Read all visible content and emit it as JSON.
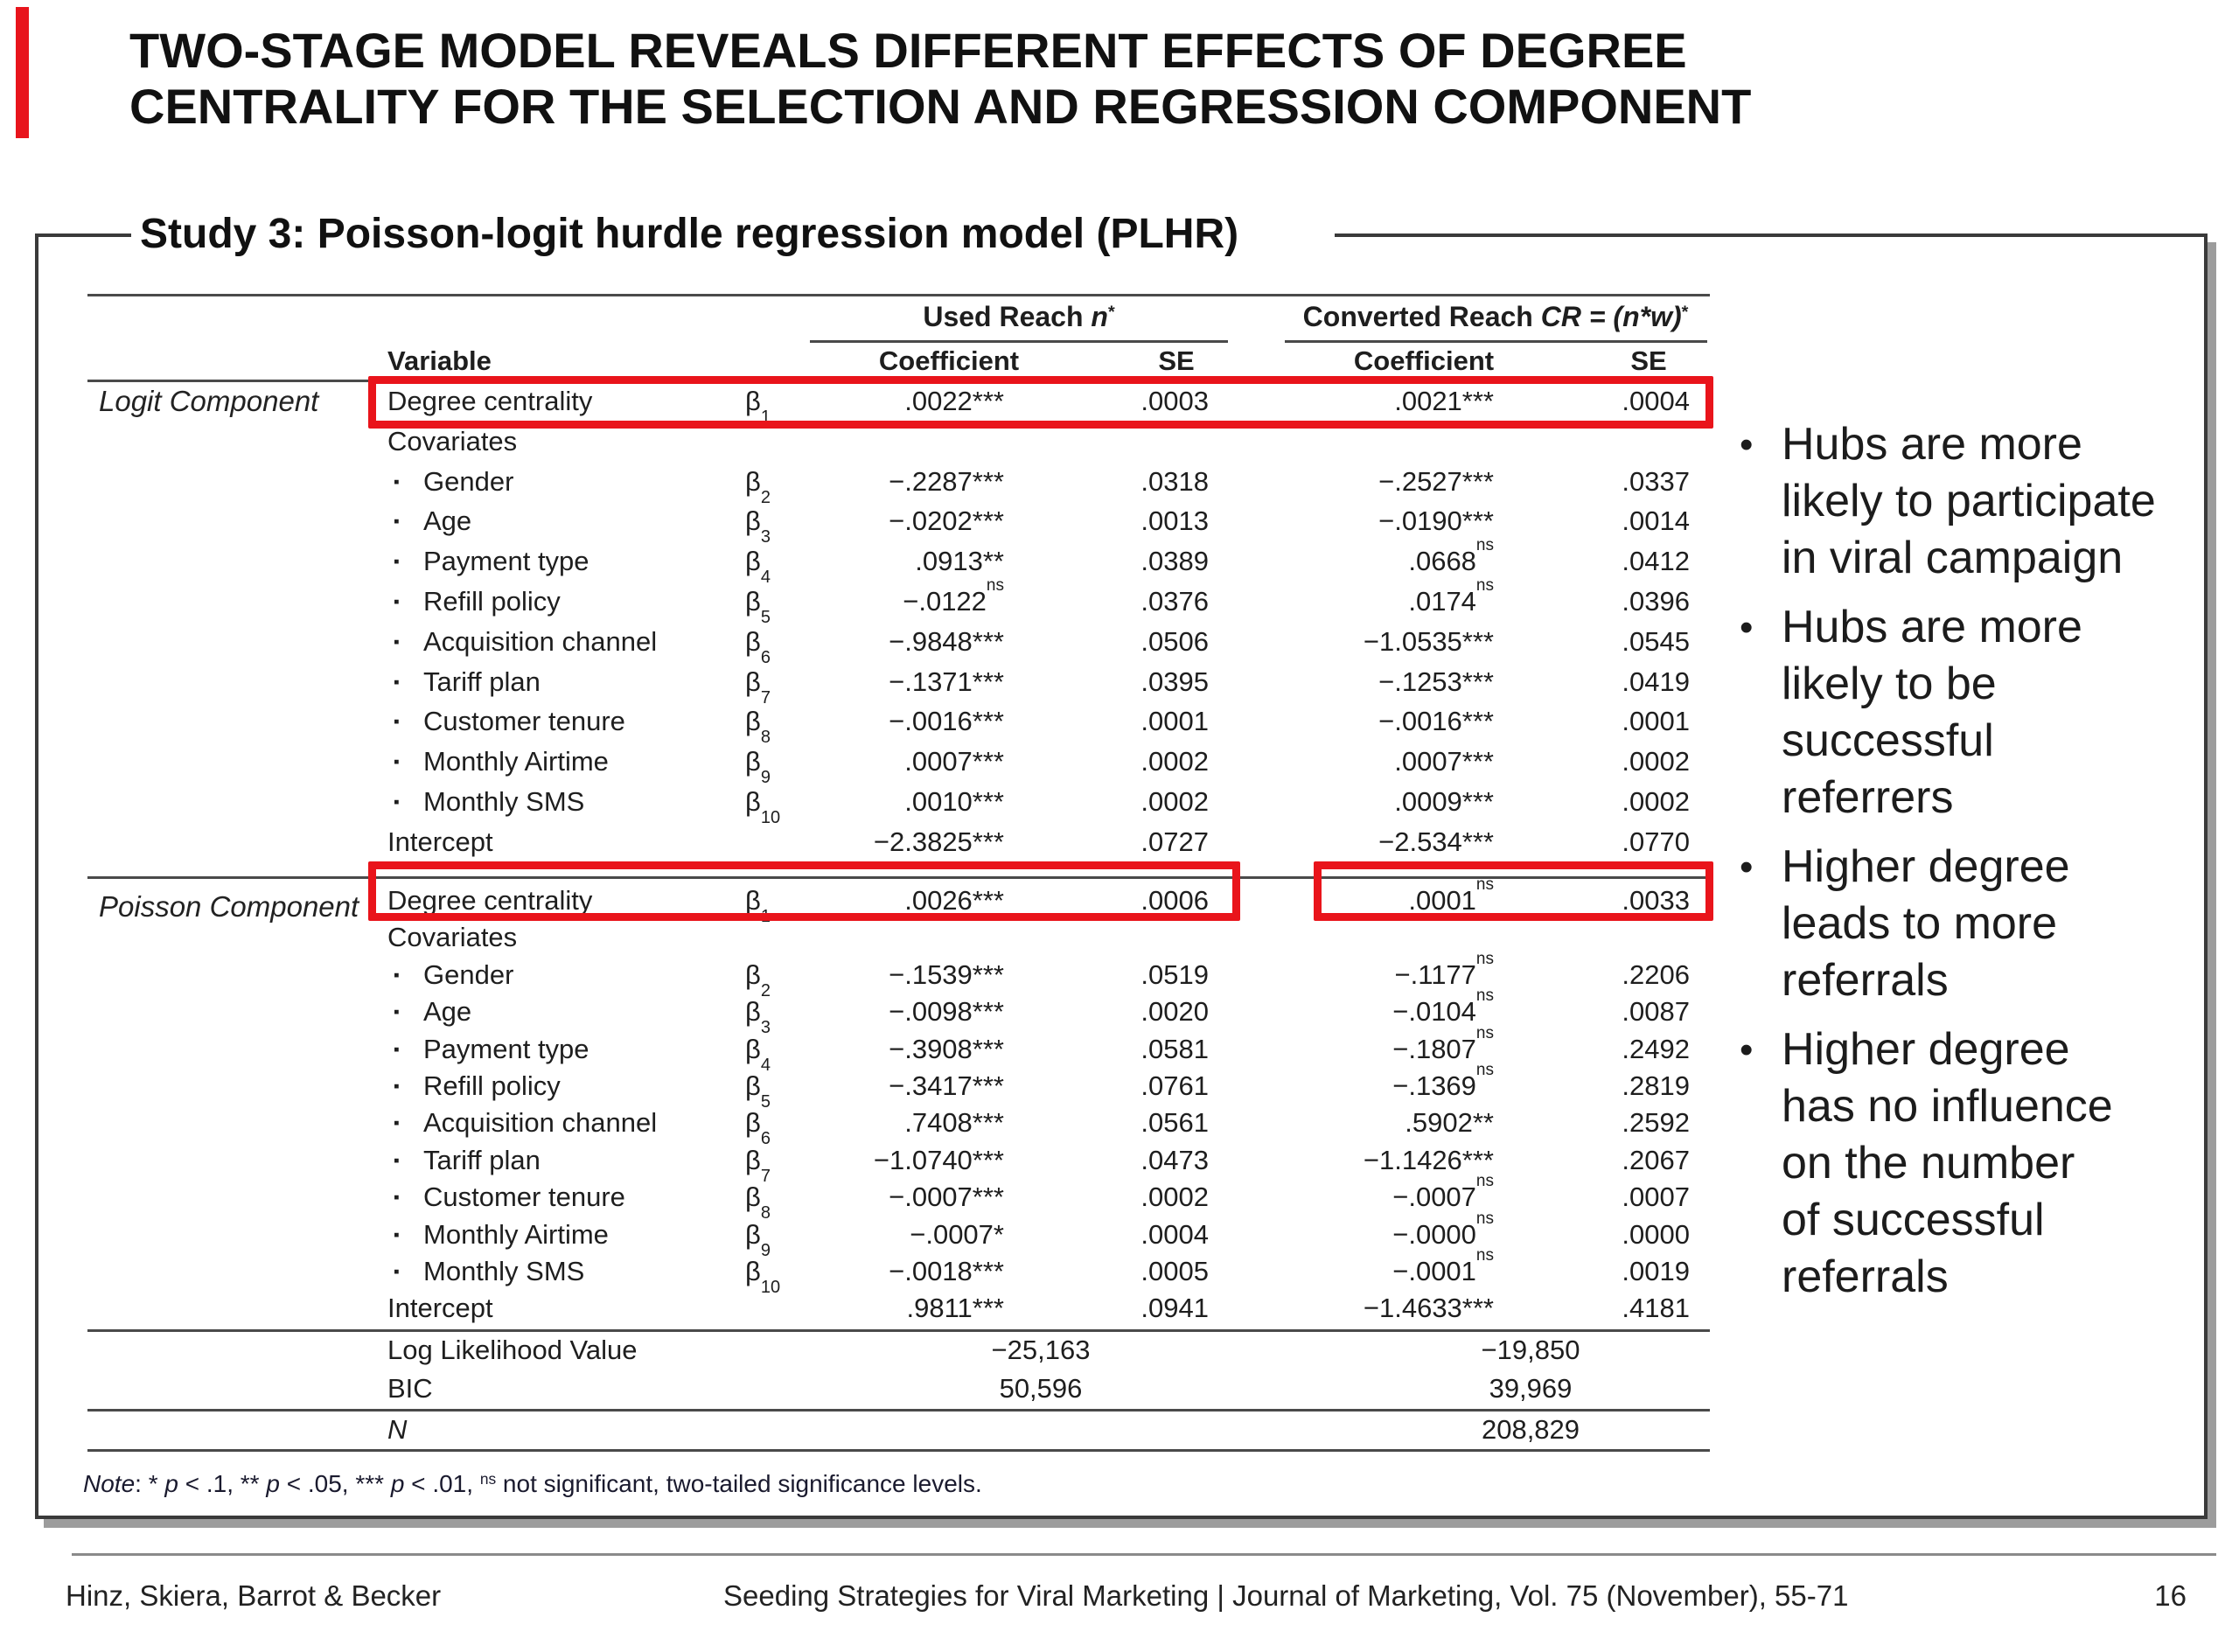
{
  "accent_color": "#e8141c",
  "highlight_color": "#e9141b",
  "bullet_char": "•",
  "covariate_bullet": "▪",
  "title": {
    "line1": "TWO-STAGE MODEL REVEALS DIFFERENT EFFECTS OF DEGREE",
    "line2": "CENTRALITY FOR THE SELECTION AND REGRESSION COMPONENT"
  },
  "study_heading": "Study 3: Poisson-logit hurdle regression model (PLHR)",
  "table": {
    "group_headers": [
      {
        "parts": [
          {
            "t": "Used Reach "
          },
          {
            "t": "n",
            "style": "italic"
          },
          {
            "t": "*",
            "style": "sup"
          }
        ]
      },
      {
        "parts": [
          {
            "t": "Converted Reach "
          },
          {
            "t": "CR = (n*w)",
            "style": "italic"
          },
          {
            "t": "*",
            "style": "sup"
          }
        ]
      }
    ],
    "col_headers": {
      "variable": "Variable",
      "coefficient": "Coefficient",
      "se": "SE"
    },
    "beta_symbol": "β",
    "sections": [
      {
        "label": "Logit Component",
        "rows": [
          {
            "variable": "Degree centrality",
            "beta_sub": "1",
            "cells": [
              {
                "v": ".0022",
                "s": "***"
              },
              {
                "v": ".0003"
              },
              {
                "v": ".0021",
                "s": "***"
              },
              {
                "v": ".0004"
              }
            ]
          },
          {
            "variable": "Covariates"
          },
          {
            "variable": "Gender",
            "sub": true,
            "beta_sub": "2",
            "cells": [
              {
                "v": "−.2287",
                "s": "***"
              },
              {
                "v": ".0318"
              },
              {
                "v": "−.2527",
                "s": "***"
              },
              {
                "v": ".0337"
              }
            ]
          },
          {
            "variable": "Age",
            "sub": true,
            "beta_sub": "3",
            "cells": [
              {
                "v": "−.0202",
                "s": "***"
              },
              {
                "v": ".0013"
              },
              {
                "v": "−.0190",
                "s": "***"
              },
              {
                "v": ".0014"
              }
            ]
          },
          {
            "variable": "Payment type",
            "sub": true,
            "beta_sub": "4",
            "cells": [
              {
                "v": ".0913",
                "s": "**"
              },
              {
                "v": ".0389"
              },
              {
                "v": ".0668",
                "s": "ns"
              },
              {
                "v": ".0412"
              }
            ]
          },
          {
            "variable": "Refill policy",
            "sub": true,
            "beta_sub": "5",
            "cells": [
              {
                "v": "−.0122",
                "s": "ns"
              },
              {
                "v": ".0376"
              },
              {
                "v": ".0174",
                "s": "ns"
              },
              {
                "v": ".0396"
              }
            ]
          },
          {
            "variable": "Acquisition channel",
            "sub": true,
            "beta_sub": "6",
            "cells": [
              {
                "v": "−.9848",
                "s": "***"
              },
              {
                "v": ".0506"
              },
              {
                "v": "−1.0535",
                "s": "***"
              },
              {
                "v": ".0545"
              }
            ]
          },
          {
            "variable": "Tariff plan",
            "sub": true,
            "beta_sub": "7",
            "cells": [
              {
                "v": "−.1371",
                "s": "***"
              },
              {
                "v": ".0395"
              },
              {
                "v": "−.1253",
                "s": "***"
              },
              {
                "v": ".0419"
              }
            ]
          },
          {
            "variable": "Customer tenure",
            "sub": true,
            "beta_sub": "8",
            "cells": [
              {
                "v": "−.0016",
                "s": "***"
              },
              {
                "v": ".0001"
              },
              {
                "v": "−.0016",
                "s": "***"
              },
              {
                "v": ".0001"
              }
            ]
          },
          {
            "variable": "Monthly Airtime",
            "sub": true,
            "beta_sub": "9",
            "cells": [
              {
                "v": ".0007",
                "s": "***"
              },
              {
                "v": ".0002"
              },
              {
                "v": ".0007",
                "s": "***"
              },
              {
                "v": ".0002"
              }
            ]
          },
          {
            "variable": "Monthly SMS",
            "sub": true,
            "beta_sub": "10",
            "cells": [
              {
                "v": ".0010",
                "s": "***"
              },
              {
                "v": ".0002"
              },
              {
                "v": ".0009",
                "s": "***"
              },
              {
                "v": ".0002"
              }
            ]
          },
          {
            "variable": "Intercept",
            "cells": [
              {
                "v": "−2.3825",
                "s": "***"
              },
              {
                "v": ".0727"
              },
              {
                "v": "−2.534",
                "s": "***"
              },
              {
                "v": ".0770"
              }
            ]
          }
        ]
      },
      {
        "label": "Poisson Component",
        "rows": [
          {
            "variable": "Degree centrality",
            "beta_sub": "1",
            "cells": [
              {
                "v": ".0026",
                "s": "***"
              },
              {
                "v": ".0006"
              },
              {
                "v": ".0001",
                "s": "ns"
              },
              {
                "v": ".0033"
              }
            ]
          },
          {
            "variable": "Covariates"
          },
          {
            "variable": "Gender",
            "sub": true,
            "beta_sub": "2",
            "cells": [
              {
                "v": "−.1539",
                "s": "***"
              },
              {
                "v": ".0519"
              },
              {
                "v": "−.1177",
                "s": "ns"
              },
              {
                "v": ".2206"
              }
            ]
          },
          {
            "variable": "Age",
            "sub": true,
            "beta_sub": "3",
            "cells": [
              {
                "v": "−.0098",
                "s": "***"
              },
              {
                "v": ".0020"
              },
              {
                "v": "−.0104",
                "s": "ns"
              },
              {
                "v": ".0087"
              }
            ]
          },
          {
            "variable": "Payment type",
            "sub": true,
            "beta_sub": "4",
            "cells": [
              {
                "v": "−.3908",
                "s": "***"
              },
              {
                "v": ".0581"
              },
              {
                "v": "−.1807",
                "s": "ns"
              },
              {
                "v": ".2492"
              }
            ]
          },
          {
            "variable": "Refill policy",
            "sub": true,
            "beta_sub": "5",
            "cells": [
              {
                "v": "−.3417",
                "s": "***"
              },
              {
                "v": ".0761"
              },
              {
                "v": "−.1369",
                "s": "ns"
              },
              {
                "v": ".2819"
              }
            ]
          },
          {
            "variable": "Acquisition channel",
            "sub": true,
            "beta_sub": "6",
            "cells": [
              {
                "v": ".7408",
                "s": "***"
              },
              {
                "v": ".0561"
              },
              {
                "v": ".5902",
                "s": "**"
              },
              {
                "v": ".2592"
              }
            ]
          },
          {
            "variable": "Tariff plan",
            "sub": true,
            "beta_sub": "7",
            "cells": [
              {
                "v": "−1.0740",
                "s": "***"
              },
              {
                "v": ".0473"
              },
              {
                "v": "−1.1426",
                "s": "***"
              },
              {
                "v": ".2067"
              }
            ]
          },
          {
            "variable": "Customer tenure",
            "sub": true,
            "beta_sub": "8",
            "cells": [
              {
                "v": "−.0007",
                "s": "***"
              },
              {
                "v": ".0002"
              },
              {
                "v": "−.0007",
                "s": "ns"
              },
              {
                "v": ".0007"
              }
            ]
          },
          {
            "variable": "Monthly Airtime",
            "sub": true,
            "beta_sub": "9",
            "cells": [
              {
                "v": "−.0007",
                "s": "*"
              },
              {
                "v": ".0004"
              },
              {
                "v": "−.0000",
                "s": "ns"
              },
              {
                "v": ".0000"
              }
            ]
          },
          {
            "variable": "Monthly SMS",
            "sub": true,
            "beta_sub": "10",
            "cells": [
              {
                "v": "−.0018",
                "s": "***"
              },
              {
                "v": ".0005"
              },
              {
                "v": "−.0001",
                "s": "ns"
              },
              {
                "v": ".0019"
              }
            ]
          },
          {
            "variable": "Intercept",
            "cells": [
              {
                "v": ".9811",
                "s": "***"
              },
              {
                "v": ".0941"
              },
              {
                "v": "−1.4633",
                "s": "***"
              },
              {
                "v": ".4181"
              }
            ]
          }
        ]
      }
    ],
    "stats": [
      {
        "label": "Log Likelihood Value",
        "used": "−25,163",
        "converted": "−19,850"
      },
      {
        "label": "BIC",
        "used": "50,596",
        "converted": "39,969"
      },
      {
        "label": "N",
        "italic": true,
        "converted": "208,829"
      }
    ],
    "note_parts": [
      {
        "t": "Note",
        "style": "italic"
      },
      {
        "t": ": * "
      },
      {
        "t": "p",
        "style": "italic"
      },
      {
        "t": " < .1, ** "
      },
      {
        "t": "p",
        "style": "italic"
      },
      {
        "t": " < .05,  *** "
      },
      {
        "t": "p",
        "style": "italic"
      },
      {
        "t": " < .01,  "
      },
      {
        "t": "ns",
        "style": "sup"
      },
      {
        "t": " not significant, two-tailed significance levels."
      }
    ]
  },
  "bullets": [
    {
      "lines": [
        "Hubs are more",
        "likely to participate",
        "in viral campaign"
      ]
    },
    {
      "lines": [
        "Hubs are more",
        "likely to be",
        "successful",
        "referrers"
      ]
    },
    {
      "lines": [
        "Higher degree",
        "leads to more",
        "referrals"
      ]
    },
    {
      "lines": [
        "Higher degree",
        "has no influence",
        "on the number",
        "of successful",
        "referrals"
      ]
    }
  ],
  "footer": {
    "authors": "Hinz, Skiera, Barrot & Becker",
    "source": "Seeding Strategies for Viral Marketing  |  Journal of Marketing, Vol. 75 (November), 55-71",
    "page": "16"
  }
}
